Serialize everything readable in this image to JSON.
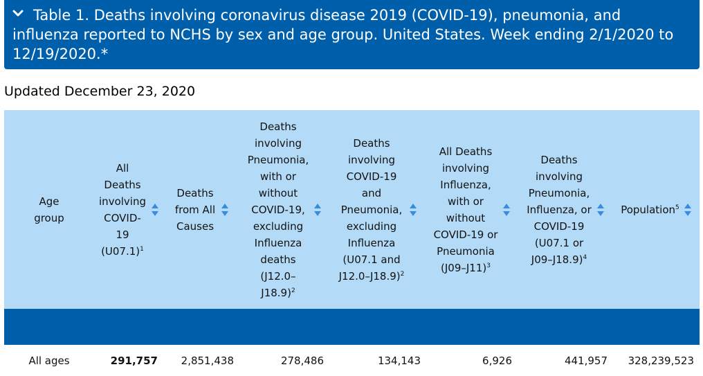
{
  "banner": {
    "title": "Table 1. Deaths involving coronavirus disease 2019 (COVID-19), pneumonia, and influenza reported to NCHS by sex and age group. United States. Week ending 2/1/2020 to 12/19/2020.*",
    "icon": "chevron-down-icon",
    "color": "#005fab"
  },
  "updated": "Updated December 23, 2020",
  "table": {
    "header_color": "#b3dbf8",
    "columns": [
      {
        "label": "Age group",
        "sup": "",
        "code": ""
      },
      {
        "label": "All Deaths involving COVID-19",
        "code": "(U07.1)",
        "sup": "1"
      },
      {
        "label": "Deaths from All Causes",
        "code": "",
        "sup": ""
      },
      {
        "label": "Deaths involving Pneumonia, with or without COVID-19, excluding Influenza deaths",
        "code": "(J12.0–J18.9)",
        "sup": "2"
      },
      {
        "label": "Deaths involving COVID-19 and Pneumonia, excluding Influenza",
        "code": "(U07.1 and J12.0–J18.9)",
        "sup": "2"
      },
      {
        "label": "All Deaths involving Influenza, with or without COVID-19 or Pneumonia",
        "code": "(J09–J11)",
        "sup": "3"
      },
      {
        "label": "Deaths involving Pneumonia, Influenza, or COVID-19",
        "code": "(U07.1 or J09–J18.9)",
        "sup": "4"
      },
      {
        "label": "Population",
        "code": "",
        "sup": "5"
      }
    ],
    "rows": [
      {
        "age_group": "All ages",
        "covid": "291,757",
        "all_causes": "2,851,438",
        "pneumonia": "278,486",
        "covid_pneumonia": "134,143",
        "influenza": "6,926",
        "pic": "441,957",
        "population": "328,239,523"
      }
    ]
  }
}
